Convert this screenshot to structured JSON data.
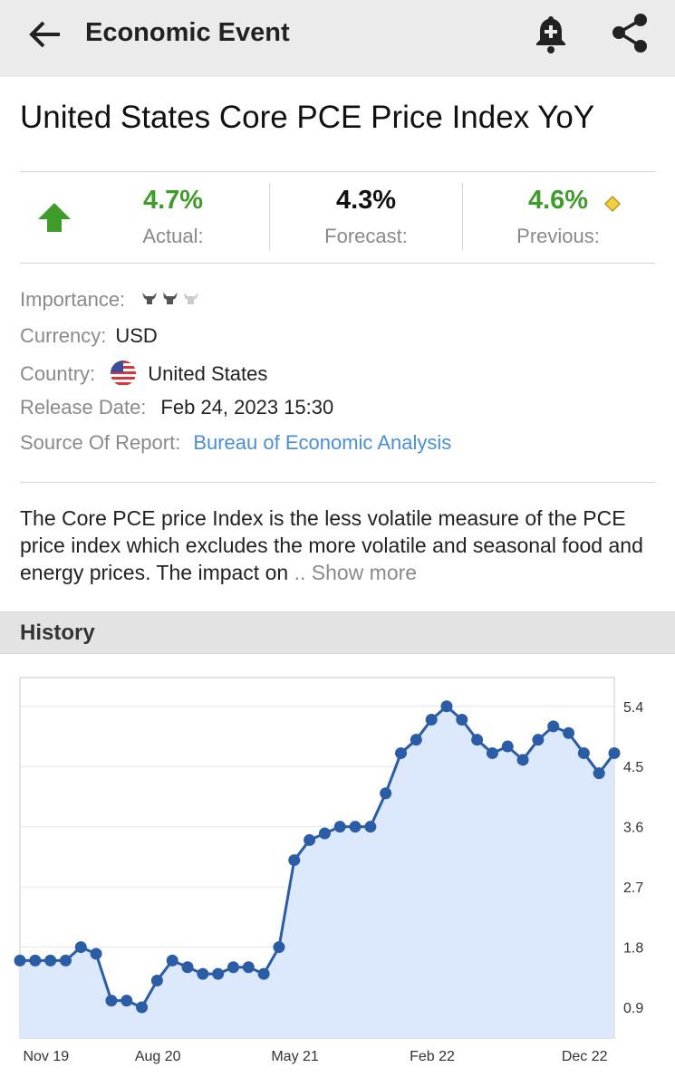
{
  "header": {
    "title": "Economic Event"
  },
  "event": {
    "title": "United States Core PCE Price Index YoY"
  },
  "stats": [
    {
      "value": "4.7%",
      "label": "Actual:"
    },
    {
      "value": "4.3%",
      "label": "Forecast:"
    },
    {
      "value": "4.6%",
      "label": "Previous:"
    }
  ],
  "details": [
    {
      "label": "Importance:"
    },
    {
      "label": "Currency:",
      "value": "USD"
    },
    {
      "label": "Country:",
      "value": "United States"
    },
    {
      "label": "Release Date:",
      "value": "Feb 24, 2023 15:30"
    },
    {
      "label": "Source Of Report:",
      "value": "Bureau of Economic Analysis"
    }
  ],
  "description": {
    "text": "The Core PCE price Index is the less volatile measure of the PCE price index which excludes the more volatile and seasonal food and energy prices. The impact on",
    "more": ".. Show more"
  },
  "history": {
    "title": "History"
  },
  "chart_data": {
    "type": "line",
    "color": "#2b5ca6",
    "fill": "#dce8fb",
    "grid": true,
    "categories": [
      null,
      "Nov 19",
      null,
      null,
      null,
      null,
      null,
      null,
      null,
      null,
      "Aug 20",
      null,
      null,
      null,
      null,
      null,
      null,
      null,
      null,
      "May 21",
      null,
      null,
      null,
      null,
      null,
      null,
      null,
      null,
      "Feb 22",
      null,
      null,
      null,
      null,
      null,
      null,
      null,
      null,
      null,
      "Dec 22",
      null
    ],
    "values": [
      1.6,
      1.6,
      1.6,
      1.6,
      1.8,
      1.7,
      1.0,
      1.0,
      0.9,
      1.3,
      1.6,
      1.5,
      1.4,
      1.4,
      1.5,
      1.5,
      1.4,
      1.8,
      3.1,
      3.4,
      3.5,
      3.6,
      3.6,
      3.6,
      4.1,
      4.7,
      4.9,
      5.2,
      5.4,
      5.2,
      4.9,
      4.7,
      4.8,
      4.6,
      4.9,
      5.1,
      5.0,
      4.7,
      4.4,
      4.7
    ],
    "ylim": [
      0.44,
      5.83
    ],
    "yticks": [
      0.9,
      1.8,
      2.7,
      3.6,
      4.5,
      5.4
    ]
  }
}
